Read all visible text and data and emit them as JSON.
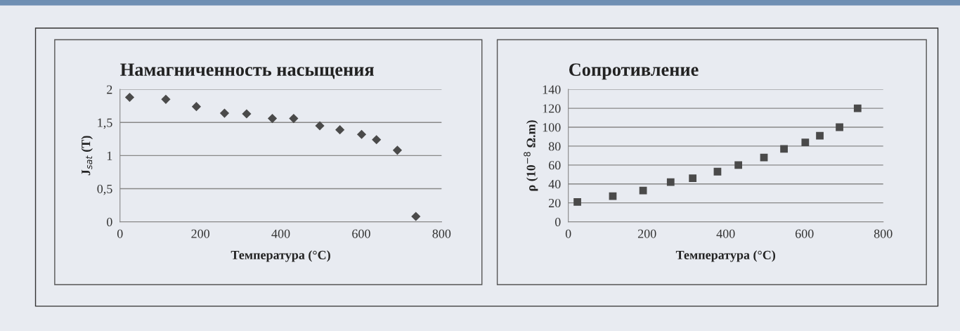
{
  "chart_data": [
    {
      "type": "scatter",
      "title": "Намагниченность насыщения",
      "xlabel": "Температура (°C)",
      "ylabel": "J$_{sat}$ (T)",
      "marker": "diamond",
      "grid": "y",
      "xlim": [
        0,
        800
      ],
      "xticks": [
        0,
        200,
        400,
        600,
        800
      ],
      "ylim": [
        0,
        2
      ],
      "yticks": [
        0,
        {
          "value": 0.5,
          "label": "0,5"
        },
        1,
        {
          "value": 1.5,
          "label": "1,5"
        },
        2
      ],
      "x": [
        24,
        114,
        190,
        260,
        315,
        379,
        432,
        497,
        547,
        601,
        638,
        690,
        736
      ],
      "series": [
        {
          "color": "#4a4a4a",
          "values": [
            1.88,
            1.85,
            1.74,
            1.64,
            1.63,
            1.56,
            1.56,
            1.45,
            1.39,
            1.32,
            1.24,
            1.08,
            0.08
          ]
        }
      ]
    },
    {
      "type": "scatter",
      "title": "Сопротивление",
      "xlabel": "Температура (°C)",
      "ylabel": "ρ (10$^{−8}$ Ω.m)",
      "marker": "square",
      "grid": "y",
      "xlim": [
        0,
        800
      ],
      "xticks": [
        0,
        200,
        400,
        600,
        800
      ],
      "ylim": [
        0,
        140
      ],
      "yticks": [
        0,
        20,
        40,
        60,
        80,
        100,
        120,
        140
      ],
      "x": [
        23,
        113,
        190,
        260,
        316,
        379,
        432,
        497,
        548,
        602,
        639,
        689,
        735
      ],
      "series": [
        {
          "color": "#4a4a4a",
          "values": [
            21,
            27,
            33,
            42,
            46,
            53,
            60,
            68,
            77,
            84,
            91,
            100,
            120
          ]
        }
      ]
    }
  ]
}
